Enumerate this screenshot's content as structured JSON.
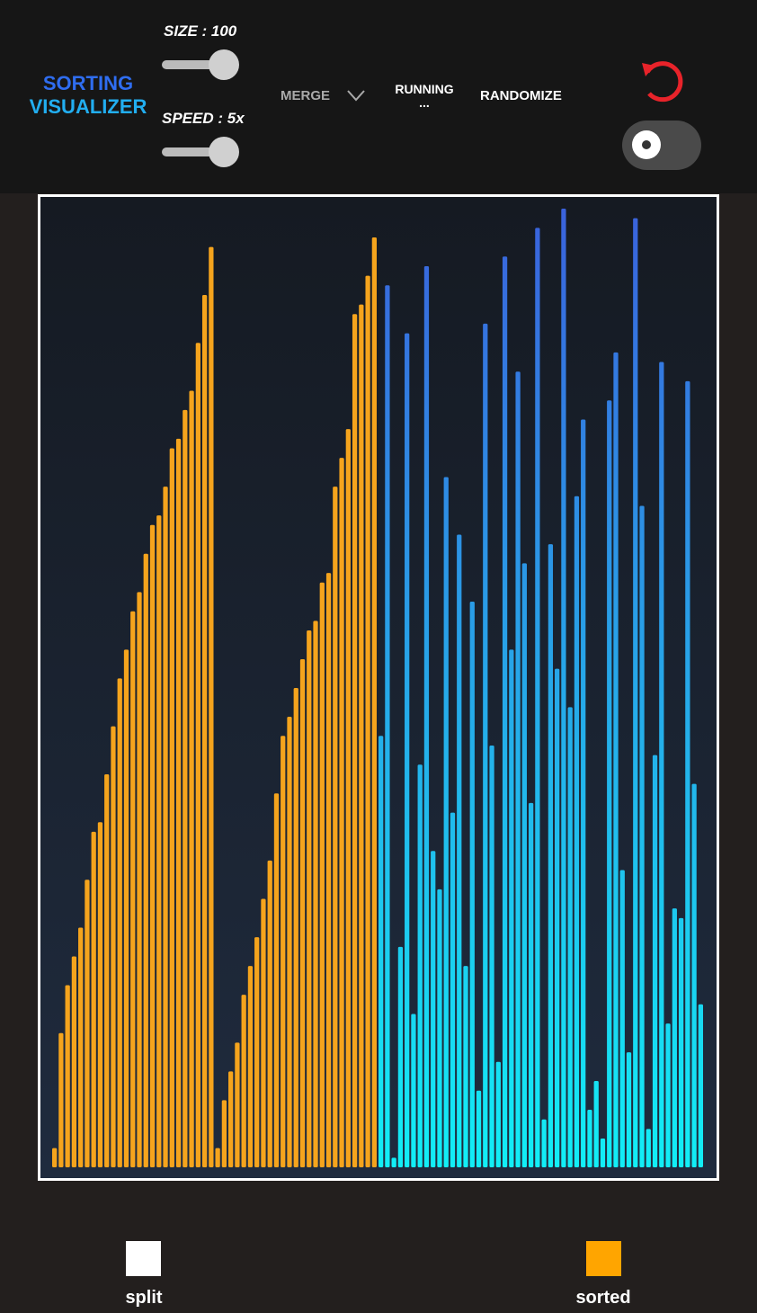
{
  "header": {
    "title_line1": "SORTING",
    "title_line2": "VISUALIZER",
    "size_label": "SIZE : 100",
    "speed_label": "SPEED : 5x",
    "algorithm": "MERGE",
    "status_line1": "RUNNING",
    "status_line2": "...",
    "randomize": "RANDOMIZE"
  },
  "bars": [
    {
      "color": "#f5a41d",
      "values": [
        2,
        14,
        19,
        22,
        25,
        30,
        35,
        36,
        41,
        46,
        51,
        54,
        58,
        60,
        64,
        67,
        68,
        71,
        75,
        76,
        79,
        81,
        86,
        91,
        96
      ]
    },
    {
      "color": "#f5a41d",
      "values": [
        2,
        7,
        10,
        13,
        18,
        21,
        24,
        28,
        32,
        39,
        45,
        47,
        50,
        53,
        56,
        57,
        61,
        62,
        71,
        74,
        77,
        89,
        90,
        93,
        97
      ]
    },
    {
      "gradient": [
        "#3a62dc",
        "#12eef6"
      ],
      "values": [
        45,
        92,
        1,
        23,
        87,
        16,
        42,
        94,
        33,
        29,
        72,
        37,
        66,
        21,
        59,
        8,
        88,
        44,
        11,
        95,
        54,
        83,
        63,
        38,
        98,
        5,
        65,
        52,
        100,
        48,
        70,
        78,
        6,
        9,
        3,
        80,
        85,
        31,
        12,
        99,
        69,
        4,
        43,
        84,
        15,
        27,
        26,
        82,
        40,
        17
      ]
    }
  ],
  "legend": [
    {
      "label": "split",
      "color": "#ffffff"
    },
    {
      "label": "sorted",
      "color": "#ffa500"
    }
  ]
}
